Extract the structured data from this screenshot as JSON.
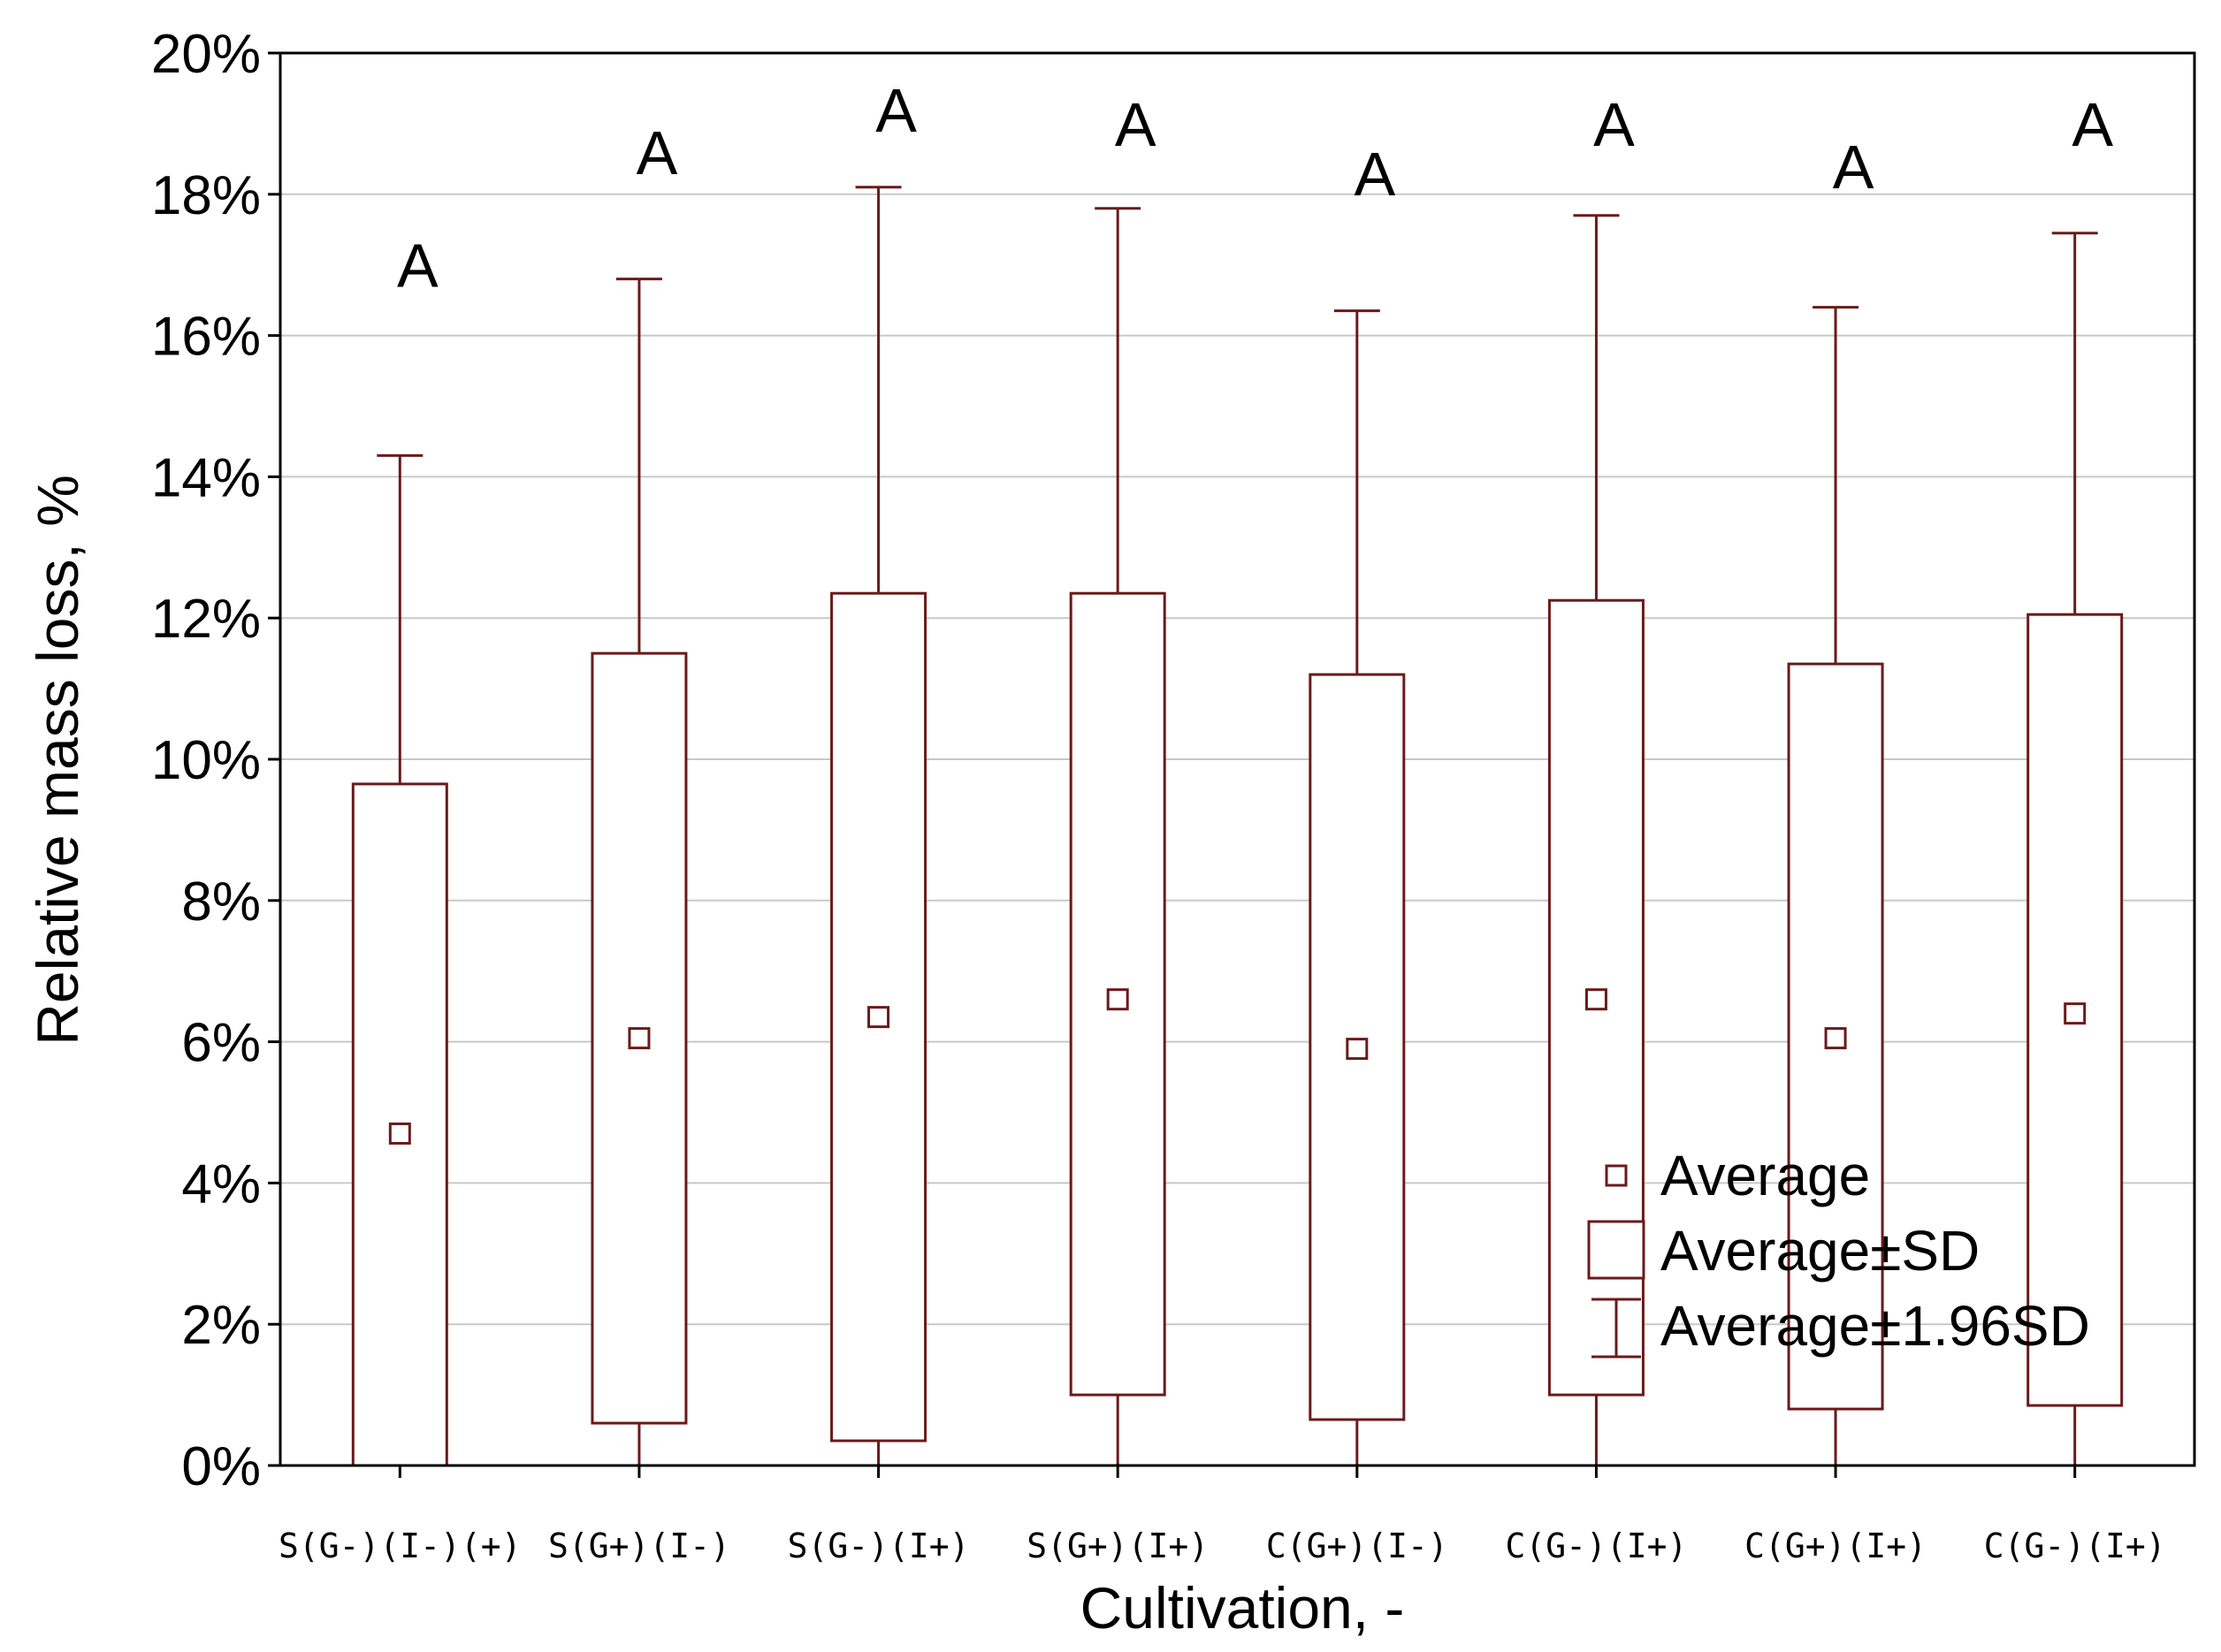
{
  "colors": {
    "series": "#6b1a1a",
    "grid": "#c8c8c8",
    "axis": "#000000",
    "text": "#000000"
  },
  "chart_data": {
    "type": "box",
    "title": "",
    "xlabel": "Cultivation, -",
    "ylabel": "Relative mass loss, %",
    "ylim": [
      0,
      20
    ],
    "y_ticks": [
      "0%",
      "2%",
      "4%",
      "6%",
      "8%",
      "10%",
      "12%",
      "14%",
      "16%",
      "18%",
      "20%"
    ],
    "grid": "horizontal",
    "legend_position": "bottom-right",
    "categories": [
      "S(G-)(I-)(+)",
      "S(G+)(I-)",
      "S(G-)(I+)",
      "S(G+)(I+)",
      "C(G+)(I-)",
      "C(G-)(I+)",
      "C(G+)(I+)",
      "C(G-)(I+)"
    ],
    "series": [
      {
        "name": "Average",
        "values": [
          4.7,
          6.05,
          6.35,
          6.6,
          5.9,
          6.6,
          6.05,
          6.4
        ]
      },
      {
        "name": "Average±SD",
        "lower": [
          0.0,
          0.6,
          0.35,
          1.0,
          0.65,
          1.0,
          0.8,
          0.85
        ],
        "upper": [
          9.65,
          11.5,
          12.35,
          12.35,
          11.2,
          12.25,
          11.35,
          12.05
        ]
      },
      {
        "name": "Average±1.96SD",
        "lower": [
          0.0,
          0.0,
          0.0,
          0.0,
          0.0,
          0.0,
          0.0,
          0.0
        ],
        "upper": [
          14.3,
          16.8,
          18.1,
          17.8,
          16.35,
          17.7,
          16.4,
          17.45
        ]
      }
    ],
    "annotations": [
      "A",
      "A",
      "A",
      "A",
      "A",
      "A",
      "A",
      "A"
    ],
    "annotation_y": [
      17.0,
      18.6,
      19.2,
      19.0,
      18.3,
      19.0,
      18.4,
      19.0
    ]
  }
}
